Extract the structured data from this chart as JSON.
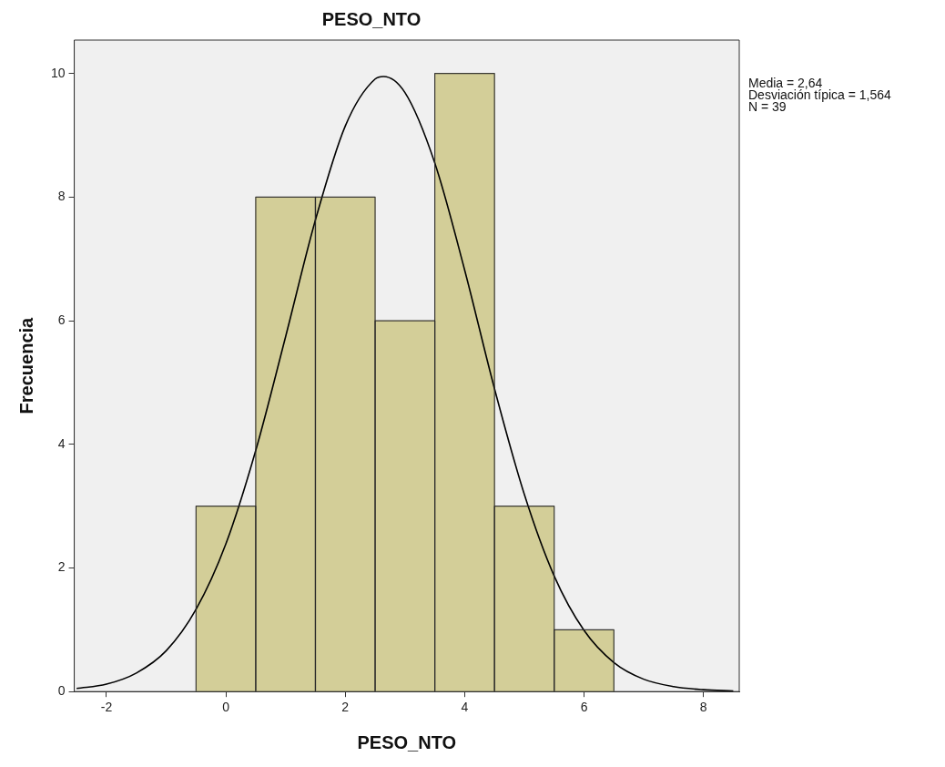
{
  "chart_data": {
    "type": "histogram",
    "title": "PESO_NTO",
    "xlabel": "PESO_NTO",
    "ylabel": "Frecuencia",
    "bins": [
      -0.5,
      0.5,
      1.5,
      2.5,
      3.5,
      4.5,
      5.5,
      6.5
    ],
    "values": [
      3,
      8,
      8,
      6,
      10,
      3,
      1
    ],
    "color": "#d3ce98",
    "series": [
      {
        "type": "line",
        "color": "#000000",
        "x": [
          -2.5,
          -2,
          -1.5,
          -1,
          -0.5,
          0,
          0.5,
          1,
          1.5,
          2,
          2.5,
          2.64,
          3,
          3.5,
          4,
          4.5,
          5,
          5.5,
          6,
          6.5,
          7,
          7.5,
          8,
          8.5
        ],
        "values": [
          0.05,
          0.12,
          0.3,
          0.66,
          1.33,
          2.39,
          3.9,
          5.74,
          7.63,
          9.15,
          9.91,
          9.95,
          9.69,
          8.55,
          6.82,
          4.9,
          3.19,
          1.87,
          0.99,
          0.47,
          0.2,
          0.08,
          0.03,
          0.01
        ]
      }
    ],
    "xlim": [
      -2.54,
      8.6
    ],
    "xticks": [
      -2,
      0,
      2,
      4,
      6,
      8
    ],
    "ylim": [
      0,
      10.54
    ],
    "yticks": [
      0,
      2,
      4,
      6,
      8,
      10
    ],
    "marker": "none",
    "legend": false,
    "annotations": [
      "Media = 2,64",
      "Desviación típica = 1,564",
      "N = 39"
    ]
  }
}
